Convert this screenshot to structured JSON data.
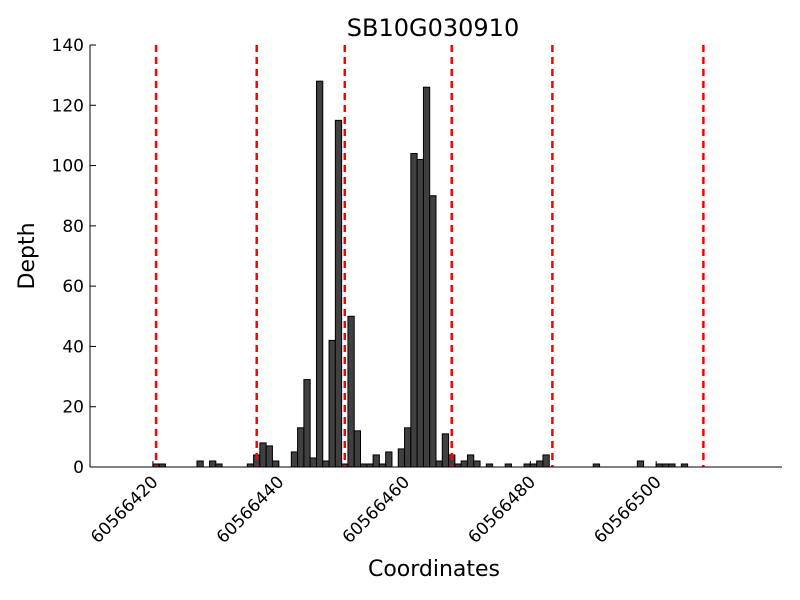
{
  "chart_data": {
    "type": "bar",
    "title": "SB10G030910",
    "xlabel": "Coordinates",
    "ylabel": "Depth",
    "xlim": [
      60566410,
      60566520
    ],
    "ylim": [
      0,
      140
    ],
    "yticks": [
      0,
      20,
      40,
      60,
      80,
      100,
      120,
      140
    ],
    "xticks": [
      60566420,
      60566440,
      60566460,
      60566480,
      60566500
    ],
    "xtick_labels": [
      "60566420",
      "60566440",
      "60566460",
      "60566480",
      "60566500"
    ],
    "grid": false,
    "bar_color": "#404040",
    "bar_edge_color": "#000000",
    "vline_color": "#ff0000",
    "series": [
      {
        "x": [
          60566420,
          60566421,
          60566427,
          60566429,
          60566430,
          60566435,
          60566436,
          60566437,
          60566438,
          60566439,
          60566442,
          60566443,
          60566444,
          60566445,
          60566446,
          60566447,
          60566448,
          60566449,
          60566450,
          60566451,
          60566452,
          60566453,
          60566454,
          60566455,
          60566456,
          60566457,
          60566459,
          60566460,
          60566461,
          60566462,
          60566463,
          60566464,
          60566465,
          60566466,
          60566467,
          60566468,
          60566469,
          60566470,
          60566471,
          60566473,
          60566476,
          60566479,
          60566480,
          60566481,
          60566482,
          60566490,
          60566497,
          60566500,
          60566501,
          60566502,
          60566504
        ],
        "values": [
          1,
          1,
          2,
          2,
          1,
          1,
          4,
          8,
          7,
          2,
          5,
          13,
          29,
          3,
          128,
          2,
          42,
          115,
          1,
          50,
          12,
          1,
          1,
          4,
          1,
          5,
          6,
          13,
          104,
          102,
          126,
          90,
          2,
          11,
          4,
          1,
          2,
          4,
          2,
          1,
          1,
          1,
          1,
          2,
          4,
          1,
          2,
          1,
          1,
          1,
          1
        ]
      }
    ],
    "vlines": [
      60566420,
      60566436,
      60566450,
      60566467,
      60566483,
      60566507
    ]
  }
}
